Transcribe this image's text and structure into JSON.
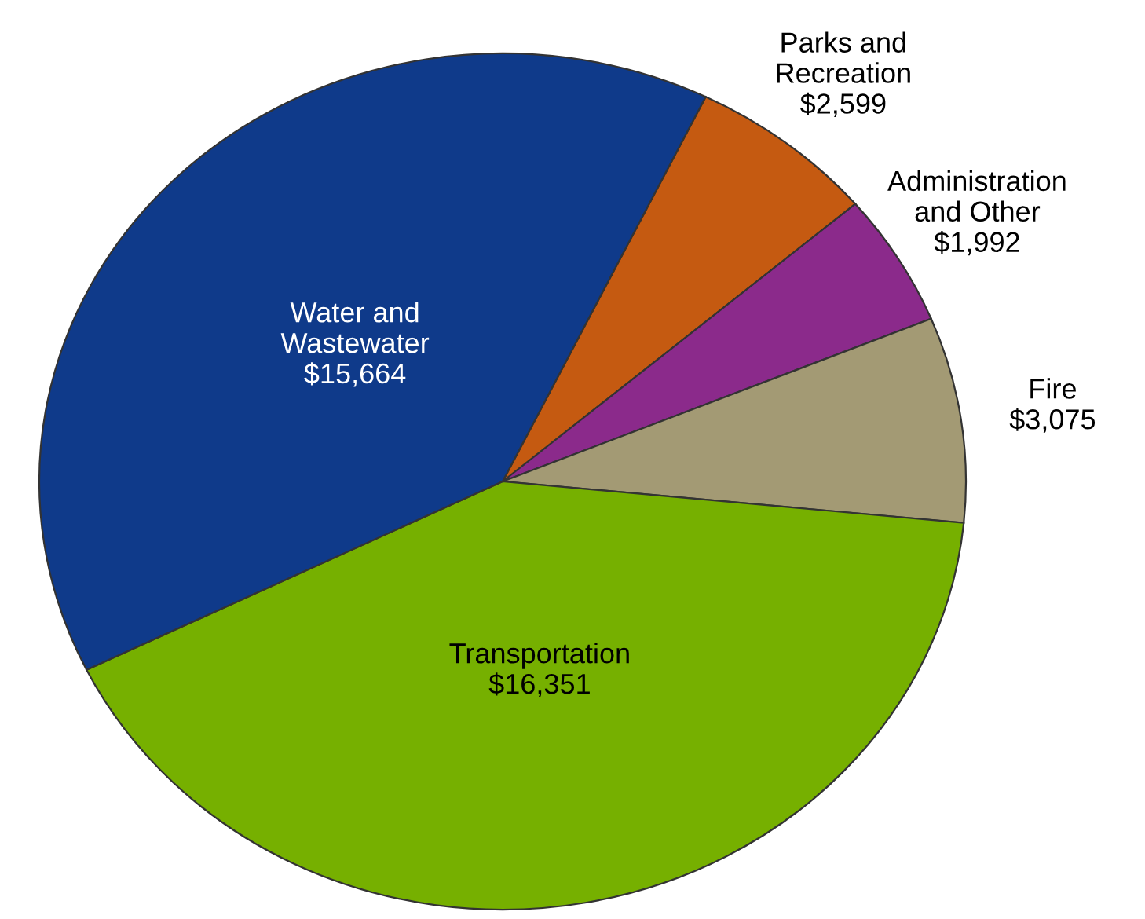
{
  "chart_data": {
    "type": "pie",
    "categories": [
      "Parks and\nRecreation",
      "Administration\nand Other",
      "Fire",
      "Transportation",
      "Water and\nWastewater"
    ],
    "values": [
      2599,
      1992,
      3075,
      16351,
      15664
    ],
    "value_labels": [
      "$2,599",
      "$1,992",
      "$3,075",
      "$16,351",
      "$15,664"
    ],
    "colors": [
      "#c55a11",
      "#8b2a8b",
      "#a39a74",
      "#76b000",
      "#0f3a8a"
    ],
    "legend": false
  }
}
